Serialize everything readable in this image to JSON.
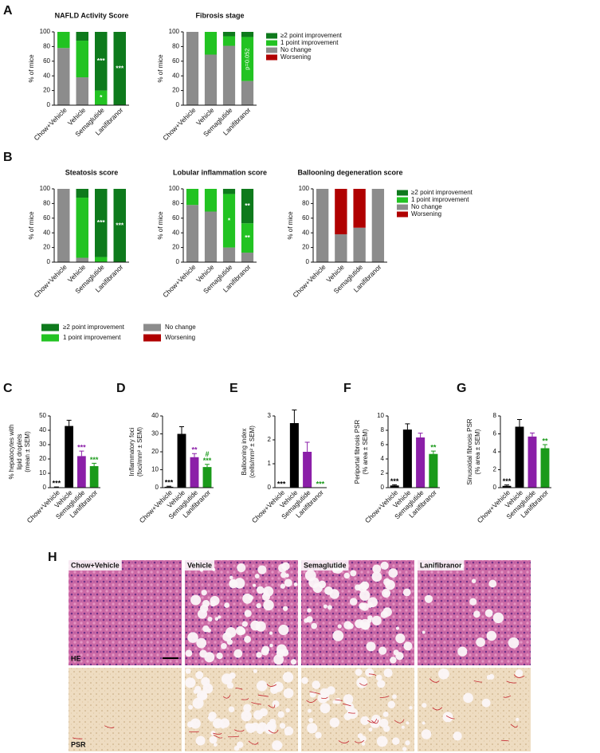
{
  "panel_labels": [
    "A",
    "B",
    "C",
    "D",
    "E",
    "F",
    "G",
    "H"
  ],
  "chart_data": [
    {
      "type": "stacked_bar",
      "title": "NAFLD Activity Score",
      "y_label": "% of mice",
      "categories": [
        "Chow+Vehicle",
        "Vehicle",
        "Semaglutide",
        "Lanifibranor"
      ],
      "series": [
        {
          "name": "No change",
          "color": "#8c8c8c",
          "values": [
            78,
            38,
            0,
            0
          ]
        },
        {
          "name": "1 point improvement",
          "color": "#22c322",
          "values": [
            22,
            50,
            20,
            0
          ]
        },
        {
          "name": "≥2 point improvement",
          "color": "#0e7a1c",
          "values": [
            0,
            12,
            80,
            100
          ]
        },
        {
          "name": "Worsening",
          "color": "#b00000",
          "values": [
            0,
            0,
            0,
            0
          ]
        }
      ],
      "ylim": [
        0,
        100
      ],
      "yticks": [
        0,
        20,
        40,
        60,
        80,
        100
      ],
      "annotations": [
        {
          "category": "Semaglutide",
          "series": "≥2 point improvement",
          "text": "***"
        },
        {
          "category": "Semaglutide",
          "series": "1 point improvement",
          "text": "*"
        },
        {
          "category": "Lanifibranor",
          "series": "≥2 point improvement",
          "text": "***"
        }
      ]
    },
    {
      "type": "stacked_bar",
      "title": "Fibrosis stage",
      "y_label": "% of mice",
      "categories": [
        "Chow+Vehicle",
        "Vehicle",
        "Semaglutide",
        "Lanifibranor"
      ],
      "series": [
        {
          "name": "No change",
          "color": "#8c8c8c",
          "values": [
            100,
            69,
            81,
            33
          ]
        },
        {
          "name": "1 point improvement",
          "color": "#22c322",
          "values": [
            0,
            31,
            13,
            60
          ]
        },
        {
          "name": "≥2 point improvement",
          "color": "#0e7a1c",
          "values": [
            0,
            0,
            6,
            7
          ]
        },
        {
          "name": "Worsening",
          "color": "#b00000",
          "values": [
            0,
            0,
            0,
            0
          ]
        }
      ],
      "ylim": [
        0,
        100
      ],
      "yticks": [
        0,
        20,
        40,
        60,
        80,
        100
      ],
      "legend": "right",
      "annotations": [
        {
          "category": "Lanifibranor",
          "series": "1 point improvement",
          "text": "p=0.052"
        }
      ]
    },
    {
      "type": "stacked_bar",
      "title": "Steatosis score",
      "y_label": "% of mice",
      "categories": [
        "Chow+Vehicle",
        "Vehicle",
        "Semaglutide",
        "Lanifibranor"
      ],
      "series": [
        {
          "name": "No change",
          "color": "#8c8c8c",
          "values": [
            100,
            6,
            0,
            0
          ]
        },
        {
          "name": "1 point improvement",
          "color": "#22c322",
          "values": [
            0,
            82,
            7,
            0
          ]
        },
        {
          "name": "≥2 point improvement",
          "color": "#0e7a1c",
          "values": [
            0,
            12,
            93,
            100
          ]
        },
        {
          "name": "Worsening",
          "color": "#b00000",
          "values": [
            0,
            0,
            0,
            0
          ]
        }
      ],
      "ylim": [
        0,
        100
      ],
      "yticks": [
        0,
        20,
        40,
        60,
        80,
        100
      ],
      "legend": "bottom",
      "annotations": [
        {
          "category": "Semaglutide",
          "series": "≥2 point improvement",
          "text": "***"
        },
        {
          "category": "Lanifibranor",
          "series": "≥2 point improvement",
          "text": "***"
        }
      ]
    },
    {
      "type": "stacked_bar",
      "title": "Lobular inflammation score",
      "y_label": "% of mice",
      "categories": [
        "Chow+Vehicle",
        "Vehicle",
        "Semaglutide",
        "Lanifibranor"
      ],
      "series": [
        {
          "name": "No change",
          "color": "#8c8c8c",
          "values": [
            78,
            69,
            20,
            13
          ]
        },
        {
          "name": "1 point improvement",
          "color": "#22c322",
          "values": [
            22,
            31,
            73,
            40
          ]
        },
        {
          "name": "≥2 point improvement",
          "color": "#0e7a1c",
          "values": [
            0,
            0,
            7,
            47
          ]
        },
        {
          "name": "Worsening",
          "color": "#b00000",
          "values": [
            0,
            0,
            0,
            0
          ]
        }
      ],
      "ylim": [
        0,
        100
      ],
      "yticks": [
        0,
        20,
        40,
        60,
        80,
        100
      ],
      "annotations": [
        {
          "category": "Semaglutide",
          "series": "1 point improvement",
          "text": "*"
        },
        {
          "category": "Lanifibranor",
          "series": "≥2 point improvement",
          "text": "**"
        },
        {
          "category": "Lanifibranor",
          "series": "1 point improvement",
          "text": "**"
        }
      ]
    },
    {
      "type": "stacked_bar",
      "title": "Ballooning degeneration score",
      "y_label": "% of mice",
      "categories": [
        "Chow+Vehicle",
        "Vehicle",
        "Semaglutide",
        "Lanifibranor"
      ],
      "series": [
        {
          "name": "No change",
          "color": "#8c8c8c",
          "values": [
            100,
            38,
            47,
            100
          ]
        },
        {
          "name": "1 point improvement",
          "color": "#22c322",
          "values": [
            0,
            0,
            0,
            0
          ]
        },
        {
          "name": "≥2 point improvement",
          "color": "#0e7a1c",
          "values": [
            0,
            0,
            0,
            0
          ]
        },
        {
          "name": "Worsening",
          "color": "#b00000",
          "values": [
            0,
            62,
            53,
            0
          ]
        }
      ],
      "ylim": [
        0,
        100
      ],
      "yticks": [
        0,
        20,
        40,
        60,
        80,
        100
      ],
      "legend": "right"
    },
    {
      "type": "bar",
      "y_label": [
        "% hepatocytes with",
        "lipid droplets",
        "(mean ± SEM)"
      ],
      "categories": [
        "Chow+Vehicle",
        "Vehicle",
        "Semaglutide",
        "Lanifibranor"
      ],
      "values": [
        0.3,
        43,
        22,
        15
      ],
      "errors": [
        0.2,
        4,
        3.5,
        2
      ],
      "colors": [
        "#000000",
        "#000000",
        "#8b1fa8",
        "#1a9a1a"
      ],
      "ylim": [
        0,
        50
      ],
      "yticks": [
        0,
        10,
        20,
        30,
        40,
        50
      ],
      "annotations": [
        {
          "category": "Chow+Vehicle",
          "text": "***"
        },
        {
          "category": "Semaglutide",
          "text": "***"
        },
        {
          "category": "Lanifibranor",
          "text": "***"
        }
      ]
    },
    {
      "type": "bar",
      "y_label": [
        "Inflammatory foci",
        "(foci/mm² ± SEM)"
      ],
      "categories": [
        "Chow+Vehicle",
        "Vehicle",
        "Semaglutide",
        "Lanifibranor"
      ],
      "values": [
        0.5,
        30,
        17,
        11.5
      ],
      "errors": [
        0.3,
        4,
        2,
        1.5
      ],
      "colors": [
        "#000000",
        "#000000",
        "#8b1fa8",
        "#1a9a1a"
      ],
      "ylim": [
        0,
        40
      ],
      "yticks": [
        0,
        10,
        20,
        30,
        40
      ],
      "annotations": [
        {
          "category": "Chow+Vehicle",
          "text": "***"
        },
        {
          "category": "Semaglutide",
          "text": "**"
        },
        {
          "category": "Lanifibranor",
          "text": "***"
        },
        {
          "category": "Lanifibranor",
          "text": "#"
        }
      ]
    },
    {
      "type": "bar",
      "y_label": [
        "Ballooning index",
        "(cells/mm² ± SEM)"
      ],
      "categories": [
        "Chow+Vehicle",
        "Vehicle",
        "Semaglutide",
        "Lanifibranor"
      ],
      "values": [
        0,
        2.7,
        1.5,
        0
      ],
      "errors": [
        0,
        0.55,
        0.4,
        0
      ],
      "colors": [
        "#000000",
        "#000000",
        "#8b1fa8",
        "#1a9a1a"
      ],
      "ylim": [
        0,
        3
      ],
      "yticks": [
        0,
        1,
        2,
        3
      ],
      "annotations": [
        {
          "category": "Chow+Vehicle",
          "text": "***"
        },
        {
          "category": "Lanifibranor",
          "text": "***"
        }
      ]
    },
    {
      "type": "bar",
      "y_label": [
        "Periportal fibrosis PSR",
        "(% area ± SEM)"
      ],
      "categories": [
        "Chow+Vehicle",
        "Vehicle",
        "Semaglutide",
        "Lanifibranor"
      ],
      "values": [
        0.3,
        8.1,
        7.0,
        4.7
      ],
      "errors": [
        0.1,
        0.8,
        0.6,
        0.4
      ],
      "colors": [
        "#000000",
        "#000000",
        "#8b1fa8",
        "#1a9a1a"
      ],
      "ylim": [
        0,
        10
      ],
      "yticks": [
        0,
        2,
        4,
        6,
        8,
        10
      ],
      "annotations": [
        {
          "category": "Chow+Vehicle",
          "text": "***"
        },
        {
          "category": "Lanifibranor",
          "text": "**"
        }
      ]
    },
    {
      "type": "bar",
      "y_label": [
        "Sinusoidal fibrosis PSR",
        "(% area ± SEM)"
      ],
      "categories": [
        "Chow+Vehicle",
        "Vehicle",
        "Semaglutide",
        "Lanifibranor"
      ],
      "values": [
        0.2,
        6.8,
        5.7,
        4.4
      ],
      "errors": [
        0.1,
        0.8,
        0.4,
        0.4
      ],
      "colors": [
        "#000000",
        "#000000",
        "#8b1fa8",
        "#1a9a1a"
      ],
      "ylim": [
        0,
        8
      ],
      "yticks": [
        0,
        2,
        4,
        6,
        8
      ],
      "annotations": [
        {
          "category": "Chow+Vehicle",
          "text": "***"
        },
        {
          "category": "Lanifibranor",
          "text": "**"
        }
      ]
    }
  ],
  "histology": {
    "columns": [
      "Chow+Vehicle",
      "Vehicle",
      "Semaglutide",
      "Lanifibranor"
    ],
    "stains": [
      "HE",
      "PSR"
    ]
  }
}
